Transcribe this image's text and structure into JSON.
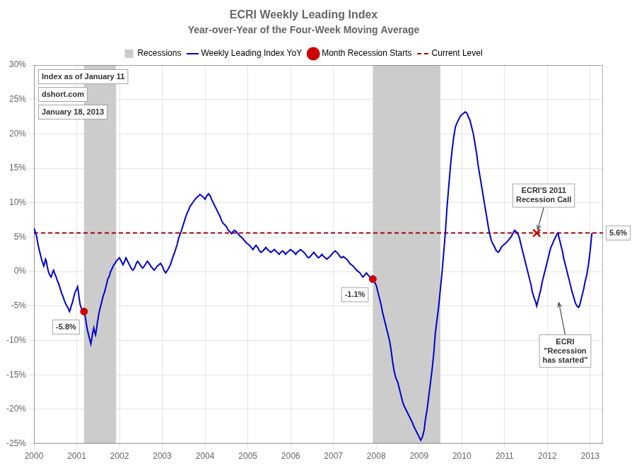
{
  "chart_data": {
    "type": "line",
    "title": "ECRI Weekly Leading Index",
    "subtitle": "Year-over-Year of the Four-Week Moving Average",
    "xlim": [
      2000.0,
      2013.3
    ],
    "ylim": [
      -25,
      30
    ],
    "xticks": [
      2000,
      2001,
      2002,
      2003,
      2004,
      2005,
      2006,
      2007,
      2008,
      2009,
      2010,
      2011,
      2012,
      2013
    ],
    "yticks": [
      {
        "value": -25,
        "label": "-25%"
      },
      {
        "value": -20,
        "label": "-20%"
      },
      {
        "value": -15,
        "label": "-15%"
      },
      {
        "value": -10,
        "label": "-10%"
      },
      {
        "value": -5,
        "label": "-5%"
      },
      {
        "value": 0,
        "label": "0%"
      },
      {
        "value": 5,
        "label": "5%"
      },
      {
        "value": 10,
        "label": "10%"
      },
      {
        "value": 15,
        "label": "15%"
      },
      {
        "value": 20,
        "label": "20%"
      },
      {
        "value": 25,
        "label": "25%"
      },
      {
        "value": 30,
        "label": "30%"
      }
    ],
    "grid": true,
    "legend": "top",
    "series": [
      {
        "name": "Recessions",
        "type": "band",
        "color": "#CCCCCC",
        "ranges": [
          [
            2001.17,
            2001.92
          ],
          [
            2007.92,
            2009.5
          ]
        ]
      },
      {
        "name": "Weekly Leading Index YoY",
        "type": "line",
        "color": "#0000CC",
        "x": [
          2000.0,
          2000.02,
          2000.04,
          2000.06,
          2000.08,
          2000.1,
          2000.13,
          2000.15,
          2000.17,
          2000.19,
          2000.21,
          2000.23,
          2000.25,
          2000.27,
          2000.29,
          2000.31,
          2000.33,
          2000.35,
          2000.37,
          2000.4,
          2000.42,
          2000.44,
          2000.46,
          2000.48,
          2000.5,
          2000.52,
          2000.54,
          2000.56,
          2000.58,
          2000.6,
          2000.63,
          2000.65,
          2000.67,
          2000.69,
          2000.71,
          2000.73,
          2000.75,
          2000.77,
          2000.79,
          2000.81,
          2000.83,
          2000.85,
          2000.87,
          2000.9,
          2000.92,
          2000.94,
          2000.96,
          2000.98,
          2001.0,
          2001.02,
          2001.04,
          2001.06,
          2001.08,
          2001.1,
          2001.12,
          2001.15,
          2001.17,
          2001.19,
          2001.21,
          2001.23,
          2001.25,
          2001.27,
          2001.29,
          2001.31,
          2001.33,
          2001.35,
          2001.37,
          2001.4,
          2001.42,
          2001.44,
          2001.46,
          2001.48,
          2001.5,
          2001.52,
          2001.54,
          2001.56,
          2001.58,
          2001.6,
          2001.62,
          2001.65,
          2001.67,
          2001.69,
          2001.71,
          2001.73,
          2001.75,
          2001.77,
          2001.79,
          2001.81,
          2001.83,
          2001.85,
          2001.87,
          2001.9,
          2001.92,
          2002.0,
          2002.04,
          2002.08,
          2002.12,
          2002.15,
          2002.19,
          2002.23,
          2002.27,
          2002.31,
          2002.35,
          2002.38,
          2002.42,
          2002.46,
          2002.5,
          2002.54,
          2002.58,
          2002.62,
          2002.65,
          2002.69,
          2002.73,
          2002.77,
          2002.81,
          2002.85,
          2002.88,
          2002.92,
          2002.96,
          2003.0,
          2003.04,
          2003.08,
          2003.12,
          2003.15,
          2003.19,
          2003.23,
          2003.27,
          2003.31,
          2003.35,
          2003.38,
          2003.42,
          2003.46,
          2003.5,
          2003.54,
          2003.58,
          2003.62,
          2003.65,
          2003.69,
          2003.73,
          2003.77,
          2003.81,
          2003.85,
          2003.88,
          2003.92,
          2003.96,
          2004.0,
          2004.04,
          2004.08,
          2004.12,
          2004.15,
          2004.19,
          2004.23,
          2004.27,
          2004.31,
          2004.35,
          2004.38,
          2004.42,
          2004.46,
          2004.5,
          2004.54,
          2004.58,
          2004.62,
          2004.65,
          2004.69,
          2004.73,
          2004.77,
          2004.81,
          2004.85,
          2004.88,
          2004.92,
          2004.96,
          2005.0,
          2005.04,
          2005.08,
          2005.12,
          2005.15,
          2005.19,
          2005.23,
          2005.27,
          2005.31,
          2005.35,
          2005.38,
          2005.42,
          2005.46,
          2005.5,
          2005.54,
          2005.58,
          2005.62,
          2005.65,
          2005.69,
          2005.73,
          2005.77,
          2005.81,
          2005.85,
          2005.88,
          2005.92,
          2005.96,
          2006.0,
          2006.04,
          2006.08,
          2006.12,
          2006.15,
          2006.19,
          2006.23,
          2006.27,
          2006.31,
          2006.35,
          2006.38,
          2006.42,
          2006.46,
          2006.5,
          2006.54,
          2006.58,
          2006.62,
          2006.65,
          2006.69,
          2006.73,
          2006.77,
          2006.81,
          2006.85,
          2006.88,
          2006.92,
          2006.96,
          2007.0,
          2007.04,
          2007.08,
          2007.12,
          2007.15,
          2007.19,
          2007.23,
          2007.27,
          2007.31,
          2007.35,
          2007.38,
          2007.42,
          2007.46,
          2007.5,
          2007.54,
          2007.58,
          2007.62,
          2007.65,
          2007.69,
          2007.73,
          2007.77,
          2007.81,
          2007.85,
          2007.88,
          2007.92,
          2007.96,
          2008.0,
          2008.04,
          2008.08,
          2008.12,
          2008.15,
          2008.19,
          2008.23,
          2008.27,
          2008.31,
          2008.35,
          2008.38,
          2008.42,
          2008.46,
          2008.5,
          2008.54,
          2008.58,
          2008.62,
          2008.65,
          2008.69,
          2008.73,
          2008.77,
          2008.81,
          2008.85,
          2008.88,
          2008.92,
          2008.96,
          2009.0,
          2009.04,
          2009.08,
          2009.12,
          2009.15,
          2009.19,
          2009.23,
          2009.27,
          2009.31,
          2009.35,
          2009.38,
          2009.42,
          2009.46,
          2009.5,
          2009.54,
          2009.58,
          2009.62,
          2009.65,
          2009.69,
          2009.73,
          2009.77,
          2009.81,
          2009.85,
          2009.88,
          2009.92,
          2009.96,
          2010.0,
          2010.04,
          2010.08,
          2010.12,
          2010.15,
          2010.19,
          2010.23,
          2010.27,
          2010.31,
          2010.35,
          2010.38,
          2010.42,
          2010.46,
          2010.5,
          2010.54,
          2010.58,
          2010.62,
          2010.65,
          2010.69,
          2010.73,
          2010.77,
          2010.81,
          2010.85,
          2010.88,
          2010.92,
          2010.96,
          2011.0,
          2011.04,
          2011.08,
          2011.12,
          2011.15,
          2011.19,
          2011.23,
          2011.27,
          2011.31,
          2011.35,
          2011.38,
          2011.42,
          2011.46,
          2011.5,
          2011.54,
          2011.58,
          2011.62,
          2011.65,
          2011.69,
          2011.73,
          2011.75,
          2011.77,
          2011.81,
          2011.85,
          2011.88,
          2011.92,
          2011.96,
          2012.0,
          2012.04,
          2012.08,
          2012.12,
          2012.15,
          2012.19,
          2012.23,
          2012.25,
          2012.27,
          2012.31,
          2012.35,
          2012.38,
          2012.42,
          2012.46,
          2012.5,
          2012.54,
          2012.58,
          2012.62,
          2012.65,
          2012.69,
          2012.73,
          2012.75,
          2012.77,
          2012.81,
          2012.85,
          2012.88,
          2012.92,
          2012.96,
          2013.0,
          2013.04
        ],
        "values": [
          6.3,
          6.0,
          5.5,
          5.2,
          4.5,
          3.8,
          3.0,
          2.5,
          2.0,
          1.5,
          1.2,
          0.8,
          1.2,
          1.8,
          1.5,
          0.8,
          0.2,
          -0.2,
          -0.5,
          -0.8,
          -0.5,
          0.0,
          0.2,
          -0.2,
          -0.5,
          -0.8,
          -1.2,
          -1.5,
          -1.8,
          -2.2,
          -2.8,
          -3.2,
          -3.5,
          -3.8,
          -4.2,
          -4.5,
          -4.8,
          -5.0,
          -5.2,
          -5.5,
          -5.8,
          -5.5,
          -5.0,
          -4.5,
          -4.0,
          -3.5,
          -3.0,
          -2.8,
          -2.5,
          -2.2,
          -3.0,
          -4.0,
          -4.8,
          -5.2,
          -5.5,
          -5.8,
          -5.8,
          -6.2,
          -7.0,
          -7.8,
          -8.5,
          -9.0,
          -9.5,
          -10.0,
          -10.5,
          -9.8,
          -9.0,
          -8.2,
          -8.8,
          -9.2,
          -8.5,
          -7.5,
          -6.8,
          -6.0,
          -5.5,
          -5.0,
          -4.5,
          -4.0,
          -3.5,
          -3.0,
          -2.5,
          -2.0,
          -1.5,
          -1.0,
          -0.8,
          -0.5,
          0.0,
          0.2,
          0.5,
          0.8,
          1.0,
          1.2,
          1.5,
          2.0,
          1.5,
          1.0,
          1.5,
          2.0,
          1.5,
          1.0,
          0.5,
          0.2,
          0.5,
          1.0,
          1.5,
          1.2,
          0.8,
          0.5,
          0.8,
          1.2,
          1.5,
          1.2,
          0.8,
          0.5,
          0.2,
          0.5,
          0.8,
          1.0,
          1.2,
          0.8,
          0.2,
          -0.2,
          0.2,
          0.5,
          1.0,
          1.8,
          2.5,
          3.2,
          4.0,
          4.8,
          5.5,
          6.2,
          7.0,
          7.8,
          8.5,
          9.0,
          9.5,
          9.8,
          10.2,
          10.5,
          10.8,
          11.0,
          11.2,
          11.0,
          10.8,
          10.5,
          11.0,
          11.3,
          11.0,
          10.5,
          10.0,
          9.5,
          9.0,
          8.5,
          8.0,
          7.5,
          7.0,
          6.8,
          6.5,
          6.0,
          5.8,
          5.5,
          5.8,
          6.0,
          5.8,
          5.5,
          5.2,
          5.0,
          4.8,
          4.5,
          4.2,
          4.0,
          3.8,
          3.5,
          3.2,
          3.5,
          3.8,
          3.5,
          3.0,
          2.8,
          3.0,
          3.2,
          3.5,
          3.2,
          3.0,
          2.8,
          3.0,
          3.2,
          3.0,
          2.8,
          2.5,
          2.8,
          3.0,
          2.8,
          2.5,
          2.8,
          3.0,
          3.2,
          3.0,
          2.8,
          2.5,
          2.8,
          3.0,
          3.2,
          3.0,
          2.8,
          2.5,
          2.2,
          2.0,
          2.2,
          2.5,
          2.8,
          2.5,
          2.2,
          2.0,
          2.2,
          2.5,
          2.2,
          2.0,
          1.8,
          2.0,
          2.2,
          2.5,
          2.8,
          3.0,
          2.8,
          2.5,
          2.2,
          2.0,
          2.2,
          2.0,
          1.8,
          1.5,
          1.2,
          1.0,
          0.8,
          0.5,
          0.2,
          0.0,
          -0.2,
          -0.5,
          -0.8,
          -0.5,
          -0.2,
          -0.5,
          -0.8,
          -1.0,
          -1.1,
          -1.5,
          -2.0,
          -3.0,
          -4.0,
          -5.0,
          -6.0,
          -7.0,
          -8.0,
          -9.0,
          -10.0,
          -11.5,
          -13.0,
          -14.5,
          -15.5,
          -16.0,
          -17.0,
          -18.0,
          -19.0,
          -19.5,
          -20.0,
          -20.5,
          -21.0,
          -21.5,
          -22.0,
          -22.5,
          -23.0,
          -23.5,
          -24.0,
          -24.5,
          -24.0,
          -23.0,
          -21.5,
          -20.0,
          -18.0,
          -16.0,
          -14.0,
          -11.5,
          -9.0,
          -7.0,
          -5.0,
          -2.5,
          0.0,
          3.0,
          6.0,
          9.0,
          12.0,
          15.0,
          17.5,
          19.5,
          21.0,
          21.5,
          22.0,
          22.5,
          22.8,
          23.0,
          23.2,
          23.0,
          22.5,
          22.0,
          21.0,
          20.0,
          18.5,
          17.0,
          15.5,
          14.0,
          12.5,
          11.0,
          9.5,
          8.0,
          6.5,
          5.5,
          4.5,
          4.0,
          3.5,
          3.0,
          2.8,
          3.0,
          3.5,
          3.8,
          4.0,
          4.2,
          4.5,
          4.8,
          5.0,
          5.5,
          6.0,
          5.8,
          5.5,
          4.8,
          4.0,
          3.0,
          2.0,
          1.0,
          0.0,
          -1.0,
          -2.0,
          -3.0,
          -3.8,
          -4.5,
          -5.0,
          -4.5,
          -3.5,
          -2.5,
          -1.5,
          -0.5,
          0.5,
          1.5,
          2.5,
          3.5,
          4.0,
          4.5,
          5.0,
          5.5,
          5.6,
          5.0,
          4.0,
          3.0,
          2.0,
          1.0,
          0.0,
          -1.0,
          -2.0,
          -3.0,
          -3.8,
          -4.5,
          -5.0,
          -5.2,
          -5.0,
          -4.5,
          -3.5,
          -2.5,
          -1.5,
          -0.5,
          1.0,
          3.0,
          5.6
        ]
      },
      {
        "name": "Month Recession Starts",
        "type": "scatter",
        "marker": "circle",
        "color": "#CC0000",
        "x": [
          2001.17,
          2007.92
        ],
        "values": [
          -5.8,
          -1.1
        ],
        "value_labels": [
          "-5.8%",
          "-1.1%"
        ]
      },
      {
        "name": "Current Level",
        "type": "hline",
        "line_style": "dashed",
        "color": "#AA0000",
        "values": [
          5.6
        ],
        "value_labels": [
          "5.6%"
        ]
      }
    ],
    "annotations": [
      {
        "text": "Index as of January 11"
      },
      {
        "text": "dshort.com"
      },
      {
        "text": "January 18, 2013"
      },
      {
        "text": "ECRI'S 2011\nRecession Call",
        "x": 2011.75,
        "y": 5.6,
        "marker": "x",
        "color": "#CC0000"
      },
      {
        "text": "ECRI\n\"Recession\nhas started\"",
        "x": 2012.25,
        "y": -4.0
      }
    ]
  }
}
